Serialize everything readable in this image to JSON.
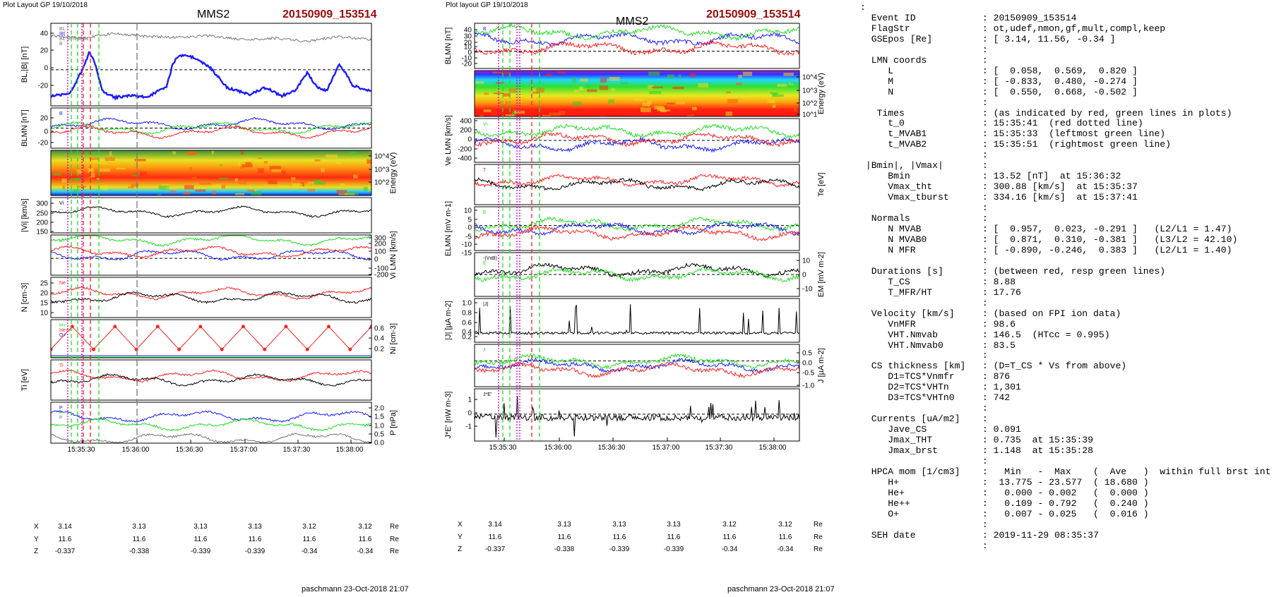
{
  "header": {
    "left_stamp": "Plot Layout GP 19/10/2018",
    "middle_stamp": "Plot layout GP 19/10/2018",
    "spacecraft": "MMS2",
    "event": "20150909_153514"
  },
  "footer": {
    "left": "paschmann 23-Oct-2018 21:07",
    "middle": "paschmann 23-Oct-2018 21:07"
  },
  "colors": {
    "red": "#ff2020",
    "green": "#22dd22",
    "blue": "#1a1aff",
    "black": "#000000",
    "gray": "#777777",
    "magenta": "#cc00cc",
    "event_title": "#9b0a0a"
  },
  "time_axis": {
    "ticks": [
      "15:35:30",
      "15:36:00",
      "15:36:30",
      "15:37:00",
      "15:37:30",
      "15:38:00"
    ]
  },
  "position_table": {
    "rows": [
      {
        "label": "X",
        "values": [
          "3.14",
          "3.13",
          "3.13",
          "3.13",
          "3.12",
          "3.12"
        ],
        "unit": "Re"
      },
      {
        "label": "Y",
        "values": [
          "11.6",
          "11.6",
          "11.6",
          "11.6",
          "11.6",
          "11.6"
        ],
        "unit": "Re"
      },
      {
        "label": "Z",
        "values": [
          "-0.337",
          "-0.338",
          "-0.339",
          "-0.339",
          "-0.34",
          "-0.34"
        ],
        "unit": "Re"
      }
    ]
  },
  "chart_data": [
    {
      "type": "line",
      "panel": "left-1",
      "ylabel": "BL,|B| [nT]",
      "yticks": [
        "40",
        "20",
        "0",
        "-20"
      ],
      "ylim": [
        -35,
        45
      ],
      "legend": [
        "BL",
        "|B|",
        "BL 50% of BL",
        "B"
      ],
      "series": [
        {
          "name": "|B|",
          "color": "#777777"
        },
        {
          "name": "BL",
          "color": "#1a1aff"
        }
      ]
    },
    {
      "type": "line",
      "panel": "left-2",
      "ylabel": "BLMN [nT]",
      "yticks": [
        "20",
        "0",
        "-20"
      ],
      "ylim": [
        -30,
        30
      ],
      "legend": [
        "B"
      ],
      "series": [
        {
          "name": "BL",
          "color": "#1a1aff"
        },
        {
          "name": "BM",
          "color": "#22dd22"
        },
        {
          "name": "BN",
          "color": "#ff2020"
        }
      ]
    },
    {
      "type": "heatmap",
      "panel": "left-3",
      "ylabel": "Energy (eV)",
      "yticks": [
        "10^4",
        "10^3",
        "10^2"
      ]
    },
    {
      "type": "line",
      "panel": "left-4",
      "ylabel": "|Vi| [km/s]",
      "yticks": [
        "300",
        "250",
        "200",
        "150"
      ],
      "ylim": [
        130,
        330
      ],
      "legend": [
        "Vi",
        "..."
      ],
      "series": [
        {
          "name": "|Vi|",
          "color": "#000000"
        }
      ]
    },
    {
      "type": "line",
      "panel": "left-5",
      "ylabel": "Vi LMN [km/s]",
      "yticks": [
        "300",
        "200",
        "100",
        "0",
        "-100",
        "-200"
      ],
      "ylim": [
        -230,
        320
      ],
      "legend": [
        "Vi"
      ],
      "series": [
        {
          "name": "Vi L",
          "color": "#22dd22"
        },
        {
          "name": "Vi M",
          "color": "#1a1aff"
        },
        {
          "name": "Vi N",
          "color": "#ff2020"
        }
      ]
    },
    {
      "type": "line",
      "panel": "left-6",
      "ylabel": "N [cm-3]",
      "yticks": [
        "25",
        "20",
        "15",
        "10"
      ],
      "ylim": [
        8,
        29
      ],
      "legend": [
        "Ne"
      ],
      "series": [
        {
          "name": "Ne",
          "color": "#ff2020"
        },
        {
          "name": "Ni",
          "color": "#000000"
        }
      ]
    },
    {
      "type": "line",
      "panel": "left-7",
      "ylabel": "Ni [cm-3]",
      "yticks": [
        "0.6",
        "0.4",
        "0.2"
      ],
      "ylim": [
        0,
        0.72
      ],
      "legend": [
        "H+",
        "He++",
        "O+"
      ],
      "series": [
        {
          "name": "H+",
          "color": "#22dd22"
        },
        {
          "name": "He++",
          "color": "#ff2020"
        },
        {
          "name": "O+",
          "color": "#1a1aff"
        }
      ]
    },
    {
      "type": "line",
      "panel": "left-8",
      "ylabel": "Ti [eV]",
      "yticks": [],
      "legend": [
        "Ti"
      ],
      "series": [
        {
          "name": "Ti",
          "color": "#ff2020"
        },
        {
          "name": "Ti",
          "color": "#000000"
        }
      ]
    },
    {
      "type": "line",
      "panel": "left-9",
      "ylabel": "P [nPa]",
      "yticks": [
        "2.0",
        "1.5",
        "1.0",
        "0.5",
        "0.0"
      ],
      "ylim": [
        0,
        2.1
      ],
      "legend": [
        "P",
        "P",
        "P"
      ],
      "series": [
        {
          "name": "P",
          "color": "#1a1aff"
        },
        {
          "name": "P",
          "color": "#22dd22"
        },
        {
          "name": "P",
          "color": "#777777"
        }
      ]
    },
    {
      "type": "line",
      "panel": "mid-1",
      "ylabel": "BLMN [nT]",
      "yticks": [
        "40",
        "30",
        "20",
        "10",
        "0",
        "-10",
        "-20"
      ],
      "ylim": [
        -28,
        45
      ],
      "legend": [
        "B"
      ],
      "series": [
        {
          "name": "BL",
          "color": "#1a1aff"
        },
        {
          "name": "BM",
          "color": "#22dd22"
        },
        {
          "name": "BN",
          "color": "#ff2020"
        }
      ]
    },
    {
      "type": "heatmap",
      "panel": "mid-2",
      "ylabel": "Energy (eV)",
      "yticks": [
        "10^4",
        "10^3",
        "10^2",
        "10^1"
      ]
    },
    {
      "type": "line",
      "panel": "mid-3",
      "ylabel": "Ve LMN [km/s]",
      "yticks": [
        "400",
        "200",
        "0",
        "-200",
        "-400"
      ],
      "ylim": [
        -450,
        450
      ],
      "legend": [
        "Vi"
      ],
      "series": [
        {
          "name": "Ve L",
          "color": "#22dd22"
        },
        {
          "name": "Ve M",
          "color": "#1a1aff"
        },
        {
          "name": "Ve N",
          "color": "#ff2020"
        }
      ]
    },
    {
      "type": "line",
      "panel": "mid-4",
      "ylabel": "Te [eV]",
      "yticks": [],
      "legend": [
        "T"
      ],
      "series": [
        {
          "name": "Te",
          "color": "#ff2020"
        },
        {
          "name": "Te",
          "color": "#000000"
        }
      ]
    },
    {
      "type": "line",
      "panel": "mid-5",
      "ylabel": "ELMN [mV m-1]",
      "yticks": [
        "10",
        "5",
        "0",
        "-5",
        "-10",
        "-15"
      ],
      "ylim": [
        -16,
        12
      ],
      "legend": [
        "E"
      ],
      "series": [
        {
          "name": "EL",
          "color": "#22dd22"
        },
        {
          "name": "EM",
          "color": "#1a1aff"
        },
        {
          "name": "EN",
          "color": "#ff2020"
        }
      ]
    },
    {
      "type": "line",
      "panel": "mid-6",
      "ylabel": "EM [mV m-2]",
      "yticks": [
        "10",
        "0",
        "-10"
      ],
      "ylim": [
        -14,
        14
      ],
      "legend": [
        "-(VxB)",
        "E"
      ],
      "series": [
        {
          "name": "-(VxB)",
          "color": "#000000"
        },
        {
          "name": "E",
          "color": "#22dd22"
        }
      ]
    },
    {
      "type": "line",
      "panel": "mid-7",
      "ylabel": "|J| [µA m-2]",
      "yticks": [
        "1.0",
        "0.8",
        "0.6",
        "0.4",
        "0.2"
      ],
      "ylim": [
        0.05,
        1.1
      ],
      "legend": [
        "|J|"
      ],
      "series": [
        {
          "name": "|J|",
          "color": "#000000"
        }
      ]
    },
    {
      "type": "line",
      "panel": "mid-8",
      "ylabel": "J [µA m-2]",
      "yticks": [
        "0.5",
        "0.0",
        "-0.5",
        "-1.0"
      ],
      "ylim": [
        -1.1,
        0.7
      ],
      "legend": [
        "J"
      ],
      "series": [
        {
          "name": "JL",
          "color": "#22dd22"
        },
        {
          "name": "JM",
          "color": "#1a1aff"
        },
        {
          "name": "JN",
          "color": "#ff2020"
        }
      ]
    },
    {
      "type": "line",
      "panel": "mid-9",
      "ylabel": "J*E' [nW m-3]",
      "yticks": [
        "1",
        "0",
        "-1"
      ],
      "ylim": [
        -1.7,
        1.6
      ],
      "legend": [
        "J*E'"
      ],
      "series": [
        {
          "name": "J*E'",
          "color": "#000000"
        }
      ]
    }
  ],
  "info_panel": [
    ":",
    "  Event ID            : 20150909_153514",
    "  FlagStr             : ot,udef,nmon,gf,mult,compl,keep",
    "  GSEpos [Re]         : [ 3.14, 11.56, -0.34 ]",
    "                      :",
    "  LMN coords          :",
    "     L                : [  0.058,  0.569,  0.820 ]",
    "     M                : [ -0.833,  0.480, -0.274 ]",
    "     N                : [  0.550,  0.668, -0.502 ]",
    "                      :",
    "   Times              : (as indicated by red, green lines in plots)",
    "     t_0              : 15:35:41  (red dotted line)",
    "     t_MVAB1          : 15:35:33  (leftmost green line)",
    "     t_MVAB2          : 15:35:51  (rightmost green line)",
    "                      :",
    " |Bmin|, |Vmax|       :",
    "     Bmin             : 13.52 [nT]  at 15:36:32",
    "     Vmax_tht         : 300.88 [km/s]  at 15:35:37",
    "     Vmax_tburst      : 334.16 [km/s]  at 15:37:41",
    "                      :",
    "  Normals             :",
    "     N MVAB           : [  0.957,  0.023, -0.291 ]   (L2/L1 = 1.47)",
    "     N MVAB0          : [  0.871,  0.310, -0.381 ]   (L3/L2 = 42.10)",
    "     N MFR            : [ -0.890, -0.246,  0.383 ]   (L2/L1 = 1.40)",
    "                      :",
    "  Durations [s]       : (between red, resp green lines)",
    "     T_CS             : 8.88",
    "     T_MFR/HT         : 17.76",
    "                      :",
    "  Velocity [km/s]     : (based on FPI ion data)",
    "     VnMFR            : 98.6",
    "     VHT.Nmvab        : 146.5  (HTcc = 0.995)",
    "     VHT.Nmvab0       : 83.5",
    "                      :",
    "  CS thickness [km]   : (D=T_CS * Vs from above)",
    "     D1=TCS*Vnmfr     : 876",
    "     D2=TCS*VHTn      : 1,301",
    "     D3=TCS*VHTn0     : 742",
    "                      :",
    "  Currents [uA/m2]    :",
    "     Jave_CS          : 0.091",
    "     Jmax_THT         : 0.735  at 15:35:39",
    "     Jmax_brst        : 1.148  at 15:35:28",
    "                      :",
    "  HPCA mom [1/cm3]    :   Min   -  Max    (  Ave   )  within full brst int",
    "     H+               :  13.775 - 23.577  ( 18.680 )",
    "     He+              :   0.000 - 0.002   (  0.000 )",
    "     He++             :   0.109 - 0.792   (  0.240 )",
    "     O+               :   0.007 - 0.025   (  0.016 )",
    "                      :",
    "  SEH date            : 2019-11-29 08:35:37",
    "                      :"
  ]
}
